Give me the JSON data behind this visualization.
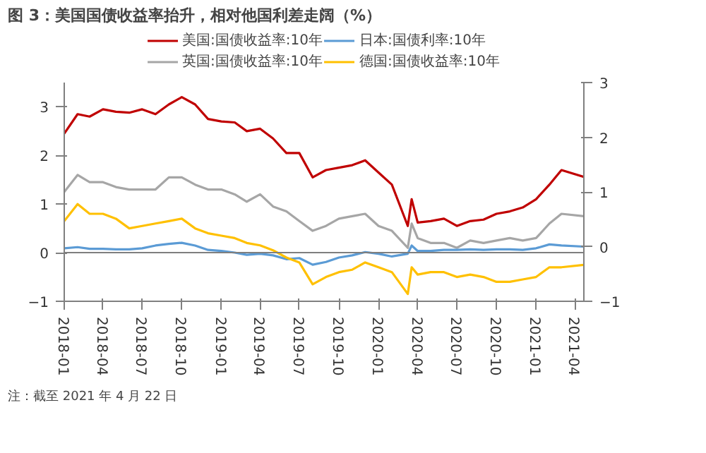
{
  "chart_data": {
    "type": "line",
    "title": "图 3：美国国债收益率抬升，相对他国利差走阔（%）",
    "x": [
      "2018-01",
      "2018-02",
      "2018-03",
      "2018-04",
      "2018-05",
      "2018-06",
      "2018-07",
      "2018-08",
      "2018-09",
      "2018-10",
      "2018-11",
      "2018-12",
      "2019-01",
      "2019-02",
      "2019-03",
      "2019-04",
      "2019-05",
      "2019-06",
      "2019-07",
      "2019-08",
      "2019-09",
      "2019-10",
      "2019-11",
      "2019-12",
      "2020-01",
      "2020-02",
      "2020-03-09",
      "2020-03-18",
      "2020-04",
      "2020-05",
      "2020-06",
      "2020-07",
      "2020-08",
      "2020-09",
      "2020-10",
      "2020-11",
      "2020-12",
      "2021-01",
      "2021-02",
      "2021-03",
      "2021-04-22"
    ],
    "series": [
      {
        "name": "美国:国债收益率:10年",
        "color": "#c00000",
        "values": [
          2.45,
          2.85,
          2.8,
          2.95,
          2.9,
          2.88,
          2.95,
          2.85,
          3.05,
          3.2,
          3.05,
          2.75,
          2.7,
          2.68,
          2.5,
          2.55,
          2.35,
          2.05,
          2.05,
          1.55,
          1.7,
          1.75,
          1.8,
          1.9,
          1.65,
          1.4,
          0.55,
          1.1,
          0.62,
          0.65,
          0.7,
          0.55,
          0.65,
          0.68,
          0.8,
          0.85,
          0.93,
          1.1,
          1.4,
          1.7,
          1.56
        ]
      },
      {
        "name": "英国:国债收益率:10年",
        "color": "#a6a6a6",
        "values": [
          1.25,
          1.6,
          1.45,
          1.45,
          1.35,
          1.3,
          1.3,
          1.3,
          1.55,
          1.55,
          1.4,
          1.3,
          1.3,
          1.2,
          1.05,
          1.2,
          0.95,
          0.85,
          0.65,
          0.45,
          0.55,
          0.7,
          0.75,
          0.8,
          0.55,
          0.45,
          0.1,
          0.6,
          0.3,
          0.2,
          0.2,
          0.1,
          0.25,
          0.2,
          0.25,
          0.3,
          0.25,
          0.3,
          0.6,
          0.8,
          0.75
        ]
      },
      {
        "name": "日本:国债利率:10年",
        "color": "#5b9bd5",
        "axis": "y2",
        "values": [
          -0.03,
          -0.01,
          -0.04,
          -0.04,
          -0.05,
          -0.05,
          -0.03,
          0.02,
          0.05,
          0.07,
          0.02,
          -0.06,
          -0.08,
          -0.11,
          -0.15,
          -0.13,
          -0.16,
          -0.23,
          -0.21,
          -0.33,
          -0.28,
          -0.2,
          -0.16,
          -0.1,
          -0.13,
          -0.18,
          -0.13,
          0.02,
          -0.08,
          -0.08,
          -0.06,
          -0.06,
          -0.05,
          -0.06,
          -0.05,
          -0.05,
          -0.06,
          -0.03,
          0.04,
          0.02,
          0.0
        ]
      },
      {
        "name": "德国:国债收益率:10年",
        "color": "#ffc000",
        "values": [
          0.65,
          1.0,
          0.8,
          0.8,
          0.7,
          0.5,
          0.55,
          0.6,
          0.65,
          0.7,
          0.5,
          0.4,
          0.35,
          0.3,
          0.2,
          0.15,
          0.05,
          -0.1,
          -0.2,
          -0.65,
          -0.5,
          -0.4,
          -0.35,
          -0.2,
          -0.3,
          -0.4,
          -0.85,
          -0.3,
          -0.45,
          -0.4,
          -0.4,
          -0.5,
          -0.45,
          -0.5,
          -0.6,
          -0.6,
          -0.55,
          -0.5,
          -0.3,
          -0.3,
          -0.25
        ]
      }
    ],
    "xlim": [
      "2018-01",
      "2021-04-22"
    ],
    "xticks": [
      "2018-01",
      "2018-04",
      "2018-07",
      "2018-10",
      "2019-01",
      "2019-04",
      "2019-07",
      "2019-10",
      "2020-01",
      "2020-04",
      "2020-07",
      "2020-10",
      "2021-01",
      "2021-04"
    ],
    "ylim": [
      -1,
      3.5
    ],
    "yticks": [
      -1,
      0,
      1,
      2,
      3
    ],
    "y2lim": [
      -1,
      3
    ],
    "y2ticks": [
      -1,
      0,
      1,
      2,
      3
    ],
    "ref_lines": [
      {
        "axis": "y",
        "value": 0,
        "color": "#7f7f7f"
      }
    ],
    "annotations": [
      "注：截至 2021 年 4 月 22 日"
    ],
    "legend": "top",
    "grid": false
  }
}
